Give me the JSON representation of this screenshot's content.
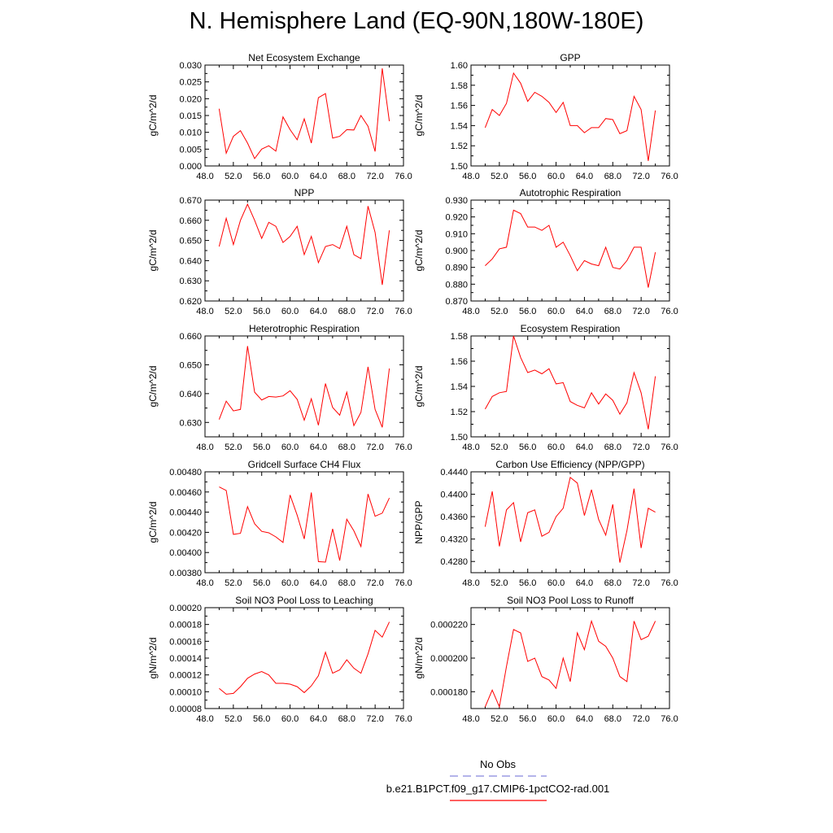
{
  "title": "N. Hemisphere Land (EQ-90N,180W-180E)",
  "colors": {
    "series": "#ff0000",
    "obs": "#8888dd",
    "axis": "#000000"
  },
  "legend": {
    "entries": [
      {
        "label": "No Obs",
        "style": "dashed",
        "color": "#8888dd"
      },
      {
        "label": "b.e21.B1PCT.f09_g17.CMIP6-1pctCO2-rad.001",
        "style": "solid",
        "color": "#ff0000"
      }
    ]
  },
  "chart_data": [
    {
      "type": "line",
      "title": "Net Ecosystem Exchange",
      "ylabel": "gC/m^2/d",
      "xlim": [
        48,
        76
      ],
      "ylim": [
        0,
        0.03
      ],
      "xticks": [
        48,
        52,
        56,
        60,
        64,
        68,
        72,
        76
      ],
      "xtick_labels": [
        "48.0",
        "52.0",
        "56.0",
        "60.0",
        "64.0",
        "68.0",
        "72.0",
        "76.0"
      ],
      "yticks": [
        0,
        0.005,
        0.01,
        0.015,
        0.02,
        0.025,
        0.03
      ],
      "ytick_labels": [
        "0.000",
        "0.005",
        "0.010",
        "0.015",
        "0.020",
        "0.025",
        "0.030"
      ],
      "x": [
        50,
        51,
        52,
        53,
        54,
        55,
        56,
        57,
        58,
        59,
        60,
        61,
        62,
        63,
        64,
        65,
        66,
        67,
        68,
        69,
        70,
        71,
        72,
        73,
        74
      ],
      "y": [
        0.017,
        0.0038,
        0.0088,
        0.0105,
        0.0068,
        0.0022,
        0.005,
        0.006,
        0.0044,
        0.0146,
        0.0108,
        0.0078,
        0.014,
        0.0068,
        0.0203,
        0.0215,
        0.0083,
        0.0088,
        0.0108,
        0.0107,
        0.015,
        0.0118,
        0.0043,
        0.029,
        0.0133
      ]
    },
    {
      "type": "line",
      "title": "GPP",
      "ylabel": "gC/m^2/d",
      "xlim": [
        48,
        76
      ],
      "ylim": [
        1.5,
        1.6
      ],
      "xticks": [
        48,
        52,
        56,
        60,
        64,
        68,
        72,
        76
      ],
      "xtick_labels": [
        "48.0",
        "52.0",
        "56.0",
        "60.0",
        "64.0",
        "68.0",
        "72.0",
        "76.0"
      ],
      "yticks": [
        1.5,
        1.52,
        1.54,
        1.56,
        1.58,
        1.6
      ],
      "ytick_labels": [
        "1.50",
        "1.52",
        "1.54",
        "1.56",
        "1.58",
        "1.60"
      ],
      "x": [
        50,
        51,
        52,
        53,
        54,
        55,
        56,
        57,
        58,
        59,
        60,
        61,
        62,
        63,
        64,
        65,
        66,
        67,
        68,
        69,
        70,
        71,
        72,
        73,
        74
      ],
      "y": [
        1.538,
        1.556,
        1.55,
        1.562,
        1.592,
        1.582,
        1.564,
        1.573,
        1.569,
        1.563,
        1.553,
        1.563,
        1.54,
        1.54,
        1.533,
        1.538,
        1.538,
        1.547,
        1.546,
        1.532,
        1.535,
        1.569,
        1.556,
        1.505,
        1.555
      ]
    },
    {
      "type": "line",
      "title": "NPP",
      "ylabel": "gC/m^2/d",
      "xlim": [
        48,
        76
      ],
      "ylim": [
        0.62,
        0.67
      ],
      "xticks": [
        48,
        52,
        56,
        60,
        64,
        68,
        72,
        76
      ],
      "xtick_labels": [
        "48.0",
        "52.0",
        "56.0",
        "60.0",
        "64.0",
        "68.0",
        "72.0",
        "76.0"
      ],
      "yticks": [
        0.62,
        0.63,
        0.64,
        0.65,
        0.66,
        0.67
      ],
      "ytick_labels": [
        "0.620",
        "0.630",
        "0.640",
        "0.650",
        "0.660",
        "0.670"
      ],
      "x": [
        50,
        51,
        52,
        53,
        54,
        55,
        56,
        57,
        58,
        59,
        60,
        61,
        62,
        63,
        64,
        65,
        66,
        67,
        68,
        69,
        70,
        71,
        72,
        73,
        74
      ],
      "y": [
        0.647,
        0.661,
        0.648,
        0.66,
        0.668,
        0.66,
        0.651,
        0.659,
        0.657,
        0.649,
        0.652,
        0.657,
        0.643,
        0.652,
        0.639,
        0.647,
        0.648,
        0.646,
        0.657,
        0.643,
        0.641,
        0.667,
        0.654,
        0.628,
        0.655
      ]
    },
    {
      "type": "line",
      "title": "Autotrophic Respiration",
      "ylabel": "gC/m^2/d",
      "xlim": [
        48,
        76
      ],
      "ylim": [
        0.87,
        0.93
      ],
      "xticks": [
        48,
        52,
        56,
        60,
        64,
        68,
        72,
        76
      ],
      "xtick_labels": [
        "48.0",
        "52.0",
        "56.0",
        "60.0",
        "64.0",
        "68.0",
        "72.0",
        "76.0"
      ],
      "yticks": [
        0.87,
        0.88,
        0.89,
        0.9,
        0.91,
        0.92,
        0.93
      ],
      "ytick_labels": [
        "0.870",
        "0.880",
        "0.890",
        "0.900",
        "0.910",
        "0.920",
        "0.930"
      ],
      "x": [
        50,
        51,
        52,
        53,
        54,
        55,
        56,
        57,
        58,
        59,
        60,
        61,
        62,
        63,
        64,
        65,
        66,
        67,
        68,
        69,
        70,
        71,
        72,
        73,
        74
      ],
      "y": [
        0.891,
        0.895,
        0.901,
        0.902,
        0.924,
        0.922,
        0.914,
        0.914,
        0.912,
        0.915,
        0.902,
        0.905,
        0.897,
        0.888,
        0.894,
        0.892,
        0.891,
        0.902,
        0.89,
        0.889,
        0.894,
        0.902,
        0.902,
        0.878,
        0.899
      ]
    },
    {
      "type": "line",
      "title": "Heterotrophic Respiration",
      "ylabel": "gC/m^2/d",
      "xlim": [
        48,
        76
      ],
      "ylim": [
        0.625,
        0.66
      ],
      "xticks": [
        48,
        52,
        56,
        60,
        64,
        68,
        72,
        76
      ],
      "xtick_labels": [
        "48.0",
        "52.0",
        "56.0",
        "60.0",
        "64.0",
        "68.0",
        "72.0",
        "76.0"
      ],
      "yticks": [
        0.63,
        0.64,
        0.65,
        0.66
      ],
      "ytick_labels": [
        "0.630",
        "0.640",
        "0.650",
        "0.660"
      ],
      "x": [
        50,
        51,
        52,
        53,
        54,
        55,
        56,
        57,
        58,
        59,
        60,
        61,
        62,
        63,
        64,
        65,
        66,
        67,
        68,
        69,
        70,
        71,
        72,
        73,
        74
      ],
      "y": [
        0.631,
        0.6374,
        0.634,
        0.6345,
        0.6565,
        0.6405,
        0.6378,
        0.639,
        0.6388,
        0.6392,
        0.641,
        0.638,
        0.6308,
        0.6382,
        0.629,
        0.6435,
        0.6352,
        0.6325,
        0.6405,
        0.6289,
        0.6335,
        0.6493,
        0.6345,
        0.6283,
        0.6487
      ]
    },
    {
      "type": "line",
      "title": "Ecosystem Respiration",
      "ylabel": "gC/m^2/d",
      "xlim": [
        48,
        76
      ],
      "ylim": [
        1.5,
        1.58
      ],
      "xticks": [
        48,
        52,
        56,
        60,
        64,
        68,
        72,
        76
      ],
      "xtick_labels": [
        "48.0",
        "52.0",
        "56.0",
        "60.0",
        "64.0",
        "68.0",
        "72.0",
        "76.0"
      ],
      "yticks": [
        1.5,
        1.52,
        1.54,
        1.56,
        1.58
      ],
      "ytick_labels": [
        "1.50",
        "1.52",
        "1.54",
        "1.56",
        "1.58"
      ],
      "x": [
        50,
        51,
        52,
        53,
        54,
        55,
        56,
        57,
        58,
        59,
        60,
        61,
        62,
        63,
        64,
        65,
        66,
        67,
        68,
        69,
        70,
        71,
        72,
        73,
        74
      ],
      "y": [
        1.522,
        1.532,
        1.535,
        1.536,
        1.58,
        1.563,
        1.551,
        1.553,
        1.55,
        1.554,
        1.542,
        1.543,
        1.528,
        1.525,
        1.523,
        1.535,
        1.526,
        1.534,
        1.529,
        1.518,
        1.527,
        1.551,
        1.535,
        1.506,
        1.548
      ]
    },
    {
      "type": "line",
      "title": "Gridcell Surface CH4 Flux",
      "ylabel": "gC/m^2/d",
      "xlim": [
        48,
        76
      ],
      "ylim": [
        0.0038,
        0.0048
      ],
      "xticks": [
        48,
        52,
        56,
        60,
        64,
        68,
        72,
        76
      ],
      "xtick_labels": [
        "48.0",
        "52.0",
        "56.0",
        "60.0",
        "64.0",
        "68.0",
        "72.0",
        "76.0"
      ],
      "yticks": [
        0.0038,
        0.004,
        0.0042,
        0.0044,
        0.0046,
        0.0048
      ],
      "ytick_labels": [
        "0.00380",
        "0.00400",
        "0.00420",
        "0.00440",
        "0.00460",
        "0.00480"
      ],
      "x": [
        50,
        51,
        52,
        53,
        54,
        55,
        56,
        57,
        58,
        59,
        60,
        61,
        62,
        63,
        64,
        65,
        66,
        67,
        68,
        69,
        70,
        71,
        72,
        73,
        74
      ],
      "y": [
        0.00465,
        0.004615,
        0.00418,
        0.00419,
        0.004455,
        0.004285,
        0.00421,
        0.004195,
        0.004155,
        0.0041,
        0.00457,
        0.00437,
        0.004135,
        0.004595,
        0.00391,
        0.003905,
        0.004235,
        0.00392,
        0.00433,
        0.004215,
        0.00406,
        0.00458,
        0.00436,
        0.00439,
        0.00454
      ]
    },
    {
      "type": "line",
      "title": "Carbon Use Efficiency (NPP/GPP)",
      "ylabel": "NPP/GPP",
      "xlim": [
        48,
        76
      ],
      "ylim": [
        0.426,
        0.444
      ],
      "xticks": [
        48,
        52,
        56,
        60,
        64,
        68,
        72,
        76
      ],
      "xtick_labels": [
        "48.0",
        "52.0",
        "56.0",
        "60.0",
        "64.0",
        "68.0",
        "72.0",
        "76.0"
      ],
      "yticks": [
        0.428,
        0.432,
        0.436,
        0.44,
        0.444
      ],
      "ytick_labels": [
        "0.4280",
        "0.4320",
        "0.4360",
        "0.4400",
        "0.4440"
      ],
      "x": [
        50,
        51,
        52,
        53,
        54,
        55,
        56,
        57,
        58,
        59,
        60,
        61,
        62,
        63,
        64,
        65,
        66,
        67,
        68,
        69,
        70,
        71,
        72,
        73,
        74
      ],
      "y": [
        0.4342,
        0.4405,
        0.4307,
        0.4372,
        0.4385,
        0.4315,
        0.4367,
        0.4372,
        0.4325,
        0.4332,
        0.436,
        0.4375,
        0.443,
        0.442,
        0.4362,
        0.4408,
        0.4355,
        0.4327,
        0.4382,
        0.4278,
        0.4335,
        0.441,
        0.4304,
        0.4375,
        0.4368
      ]
    },
    {
      "type": "line",
      "title": "Soil NO3 Pool Loss to Leaching",
      "ylabel": "gN/m^2/d",
      "xlim": [
        48,
        76
      ],
      "ylim": [
        8e-05,
        0.0002
      ],
      "xticks": [
        48,
        52,
        56,
        60,
        64,
        68,
        72,
        76
      ],
      "xtick_labels": [
        "48.0",
        "52.0",
        "56.0",
        "60.0",
        "64.0",
        "68.0",
        "72.0",
        "76.0"
      ],
      "yticks": [
        8e-05,
        0.0001,
        0.00012,
        0.00014,
        0.00016,
        0.00018,
        0.0002
      ],
      "ytick_labels": [
        "0.00008",
        "0.00010",
        "0.00012",
        "0.00014",
        "0.00016",
        "0.00018",
        "0.00020"
      ],
      "x": [
        50,
        51,
        52,
        53,
        54,
        55,
        56,
        57,
        58,
        59,
        60,
        61,
        62,
        63,
        64,
        65,
        66,
        67,
        68,
        69,
        70,
        71,
        72,
        73,
        74
      ],
      "y": [
        0.000104,
        9.7e-05,
        9.8e-05,
        0.000106,
        0.000116,
        0.000121,
        0.000124,
        0.00012,
        0.00011,
        0.00011,
        0.000109,
        0.000106,
        9.9e-05,
        0.000107,
        0.000119,
        0.000147,
        0.000122,
        0.000126,
        0.000138,
        0.000128,
        0.000122,
        0.000145,
        0.000173,
        0.000165,
        0.000183
      ]
    },
    {
      "type": "line",
      "title": "Soil NO3 Pool Loss to Runoff",
      "ylabel": "gN/m^2/d",
      "xlim": [
        48,
        76
      ],
      "ylim": [
        0.00017,
        0.00023
      ],
      "xticks": [
        48,
        52,
        56,
        60,
        64,
        68,
        72,
        76
      ],
      "xtick_labels": [
        "48.0",
        "52.0",
        "56.0",
        "60.0",
        "64.0",
        "68.0",
        "72.0",
        "76.0"
      ],
      "yticks": [
        0.00018,
        0.0002,
        0.00022
      ],
      "ytick_labels": [
        "0.000180",
        "0.000200",
        "0.000220"
      ],
      "x": [
        50,
        51,
        52,
        53,
        54,
        55,
        56,
        57,
        58,
        59,
        60,
        61,
        62,
        63,
        64,
        65,
        66,
        67,
        68,
        69,
        70,
        71,
        72,
        73,
        74
      ],
      "y": [
        0.000171,
        0.000181,
        0.000171,
        0.000195,
        0.000217,
        0.000215,
        0.000198,
        0.0002,
        0.000189,
        0.000187,
        0.000182,
        0.0002,
        0.000186,
        0.000215,
        0.000205,
        0.000222,
        0.00021,
        0.000207,
        0.0002,
        0.000189,
        0.000186,
        0.000222,
        0.000211,
        0.000213,
        0.000222
      ]
    }
  ]
}
